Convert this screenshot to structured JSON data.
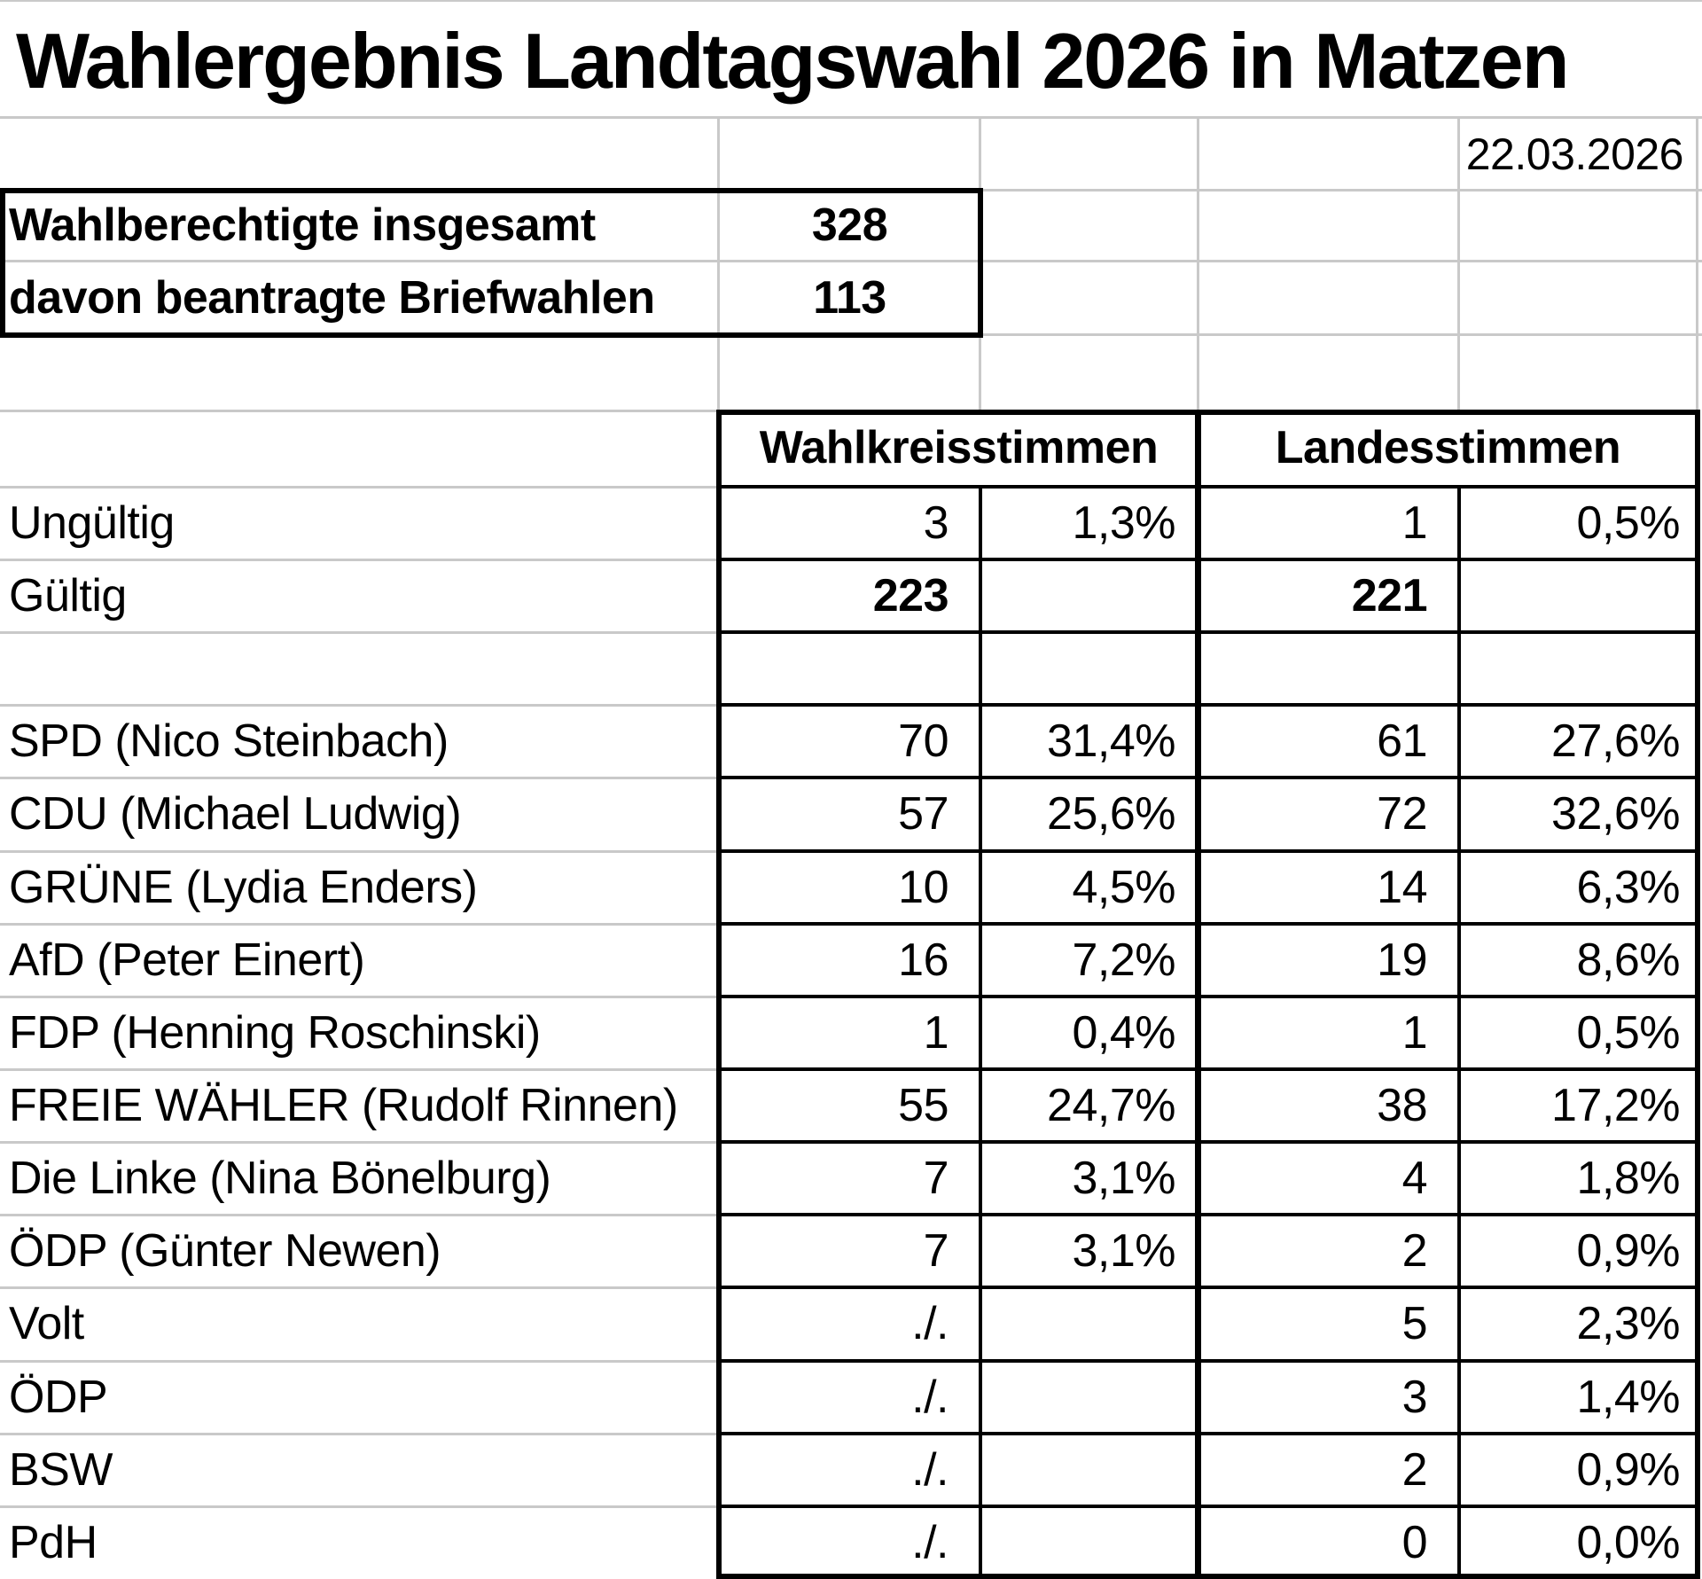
{
  "title": "Wahlergebnis Landtagswahl 2026 in Matzen",
  "date": "22.03.2026",
  "summary": {
    "rows": [
      {
        "label": "Wahlberechtigte insgesamt",
        "value": "328"
      },
      {
        "label": "davon beantragte Briefwahlen",
        "value": "113"
      }
    ]
  },
  "results": {
    "group_headers": [
      "Wahlkreisstimmen",
      "Landesstimmen"
    ],
    "rows": [
      {
        "label": "Ungültig",
        "wk_votes": "3",
        "wk_pct": "1,3%",
        "ls_votes": "1",
        "ls_pct": "0,5%",
        "bold_values": false
      },
      {
        "label": "Gültig",
        "wk_votes": "223",
        "wk_pct": "",
        "ls_votes": "221",
        "ls_pct": "",
        "bold_values": true
      },
      {
        "label": "",
        "wk_votes": "",
        "wk_pct": "",
        "ls_votes": "",
        "ls_pct": "",
        "bold_values": false
      },
      {
        "label": "SPD (Nico Steinbach)",
        "wk_votes": "70",
        "wk_pct": "31,4%",
        "ls_votes": "61",
        "ls_pct": "27,6%",
        "bold_values": false
      },
      {
        "label": "CDU (Michael Ludwig)",
        "wk_votes": "57",
        "wk_pct": "25,6%",
        "ls_votes": "72",
        "ls_pct": "32,6%",
        "bold_values": false
      },
      {
        "label": "GRÜNE (Lydia Enders)",
        "wk_votes": "10",
        "wk_pct": "4,5%",
        "ls_votes": "14",
        "ls_pct": "6,3%",
        "bold_values": false
      },
      {
        "label": "AfD (Peter Einert)",
        "wk_votes": "16",
        "wk_pct": "7,2%",
        "ls_votes": "19",
        "ls_pct": "8,6%",
        "bold_values": false
      },
      {
        "label": "FDP (Henning Roschinski)",
        "wk_votes": "1",
        "wk_pct": "0,4%",
        "ls_votes": "1",
        "ls_pct": "0,5%",
        "bold_values": false
      },
      {
        "label": "FREIE WÄHLER (Rudolf Rinnen)",
        "wk_votes": "55",
        "wk_pct": "24,7%",
        "ls_votes": "38",
        "ls_pct": "17,2%",
        "bold_values": false
      },
      {
        "label": "Die Linke (Nina Bönelburg)",
        "wk_votes": "7",
        "wk_pct": "3,1%",
        "ls_votes": "4",
        "ls_pct": "1,8%",
        "bold_values": false
      },
      {
        "label": "ÖDP (Günter Newen)",
        "wk_votes": "7",
        "wk_pct": "3,1%",
        "ls_votes": "2",
        "ls_pct": "0,9%",
        "bold_values": false
      },
      {
        "label": "Volt",
        "wk_votes": "./.",
        "wk_pct": "",
        "ls_votes": "5",
        "ls_pct": "2,3%",
        "bold_values": false
      },
      {
        "label": "ÖDP",
        "wk_votes": "./.",
        "wk_pct": "",
        "ls_votes": "3",
        "ls_pct": "1,4%",
        "bold_values": false
      },
      {
        "label": "BSW",
        "wk_votes": "./.",
        "wk_pct": "",
        "ls_votes": "2",
        "ls_pct": "0,9%",
        "bold_values": false
      },
      {
        "label": "PdH",
        "wk_votes": "./.",
        "wk_pct": "",
        "ls_votes": "0",
        "ls_pct": "0,0%",
        "bold_values": false
      }
    ]
  },
  "colors": {
    "background": "#ffffff",
    "text": "#000000",
    "grid_line": "#c9c9c9",
    "border": "#000000"
  }
}
